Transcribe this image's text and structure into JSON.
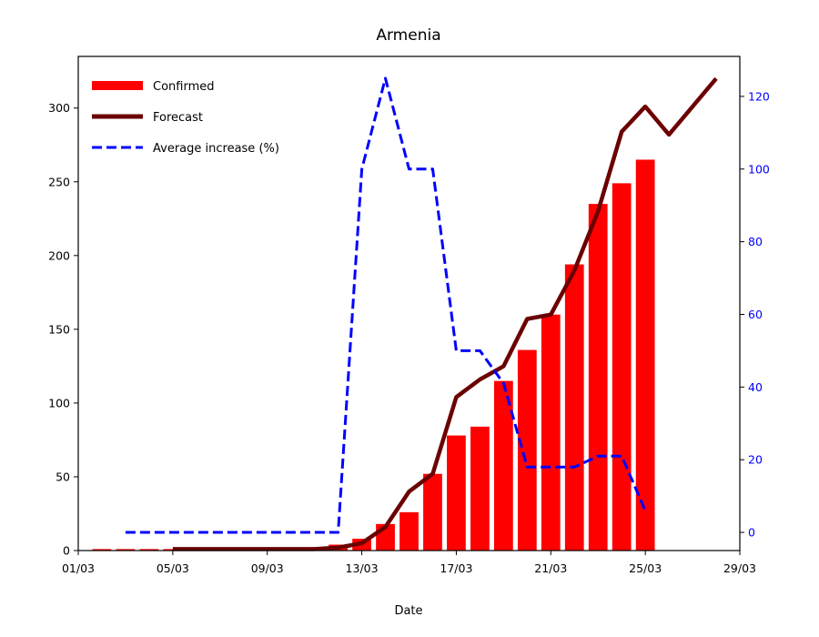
{
  "chart_data": {
    "type": "bar",
    "title": "Armenia",
    "xlabel": "Date",
    "ylabel": "",
    "x_ticks": [
      "01/03",
      "05/03",
      "09/03",
      "13/03",
      "17/03",
      "21/03",
      "25/03",
      "29/03"
    ],
    "x_range_days": [
      1,
      29
    ],
    "ylim": [
      0,
      335
    ],
    "y_ticks": [
      0,
      50,
      100,
      150,
      200,
      250,
      300
    ],
    "y2lim": [
      -5,
      131
    ],
    "y2_ticks": [
      0,
      20,
      40,
      60,
      80,
      100,
      120
    ],
    "legend_position": "upper-left",
    "series": [
      {
        "name": "Confirmed",
        "kind": "bar",
        "color": "#ff0000",
        "axis": "left",
        "points": [
          {
            "x": "02/03",
            "y": 1
          },
          {
            "x": "03/03",
            "y": 1
          },
          {
            "x": "04/03",
            "y": 1
          },
          {
            "x": "05/03",
            "y": 1
          },
          {
            "x": "06/03",
            "y": 1
          },
          {
            "x": "07/03",
            "y": 1
          },
          {
            "x": "08/03",
            "y": 1
          },
          {
            "x": "09/03",
            "y": 1
          },
          {
            "x": "10/03",
            "y": 1
          },
          {
            "x": "11/03",
            "y": 1
          },
          {
            "x": "12/03",
            "y": 4
          },
          {
            "x": "13/03",
            "y": 8
          },
          {
            "x": "14/03",
            "y": 18
          },
          {
            "x": "15/03",
            "y": 26
          },
          {
            "x": "16/03",
            "y": 52
          },
          {
            "x": "17/03",
            "y": 78
          },
          {
            "x": "18/03",
            "y": 84
          },
          {
            "x": "19/03",
            "y": 115
          },
          {
            "x": "20/03",
            "y": 136
          },
          {
            "x": "21/03",
            "y": 160
          },
          {
            "x": "22/03",
            "y": 194
          },
          {
            "x": "23/03",
            "y": 235
          },
          {
            "x": "24/03",
            "y": 249
          },
          {
            "x": "25/03",
            "y": 265
          }
        ]
      },
      {
        "name": "Forecast",
        "kind": "line",
        "color": "#6b0000",
        "axis": "left",
        "points": [
          {
            "x": "05/03",
            "y": 1
          },
          {
            "x": "06/03",
            "y": 1
          },
          {
            "x": "07/03",
            "y": 1
          },
          {
            "x": "08/03",
            "y": 1
          },
          {
            "x": "09/03",
            "y": 1
          },
          {
            "x": "10/03",
            "y": 1
          },
          {
            "x": "11/03",
            "y": 1
          },
          {
            "x": "12/03",
            "y": 2
          },
          {
            "x": "13/03",
            "y": 5
          },
          {
            "x": "14/03",
            "y": 16
          },
          {
            "x": "15/03",
            "y": 40
          },
          {
            "x": "16/03",
            "y": 52
          },
          {
            "x": "17/03",
            "y": 104
          },
          {
            "x": "18/03",
            "y": 116
          },
          {
            "x": "19/03",
            "y": 125
          },
          {
            "x": "20/03",
            "y": 157
          },
          {
            "x": "21/03",
            "y": 160
          },
          {
            "x": "22/03",
            "y": 190
          },
          {
            "x": "23/03",
            "y": 230
          },
          {
            "x": "24/03",
            "y": 284
          },
          {
            "x": "25/03",
            "y": 301
          },
          {
            "x": "26/03",
            "y": 282
          },
          {
            "x": "27/03",
            "y": 301
          },
          {
            "x": "28/03",
            "y": 320
          }
        ]
      },
      {
        "name": "Average increase (%)",
        "kind": "line",
        "style": "dashed",
        "color": "#0000ff",
        "axis": "right",
        "points": [
          {
            "x": "03/03",
            "y": 0
          },
          {
            "x": "04/03",
            "y": 0
          },
          {
            "x": "05/03",
            "y": 0
          },
          {
            "x": "06/03",
            "y": 0
          },
          {
            "x": "07/03",
            "y": 0
          },
          {
            "x": "08/03",
            "y": 0
          },
          {
            "x": "09/03",
            "y": 0
          },
          {
            "x": "10/03",
            "y": 0
          },
          {
            "x": "11/03",
            "y": 0
          },
          {
            "x": "12/03",
            "y": 0
          },
          {
            "x": "13/03",
            "y": 100
          },
          {
            "x": "14/03",
            "y": 125
          },
          {
            "x": "15/03",
            "y": 100
          },
          {
            "x": "16/03",
            "y": 100
          },
          {
            "x": "17/03",
            "y": 50
          },
          {
            "x": "18/03",
            "y": 50
          },
          {
            "x": "19/03",
            "y": 41
          },
          {
            "x": "20/03",
            "y": 18
          },
          {
            "x": "21/03",
            "y": 18
          },
          {
            "x": "22/03",
            "y": 18
          },
          {
            "x": "23/03",
            "y": 21
          },
          {
            "x": "24/03",
            "y": 21
          },
          {
            "x": "25/03",
            "y": 6
          }
        ]
      }
    ]
  }
}
